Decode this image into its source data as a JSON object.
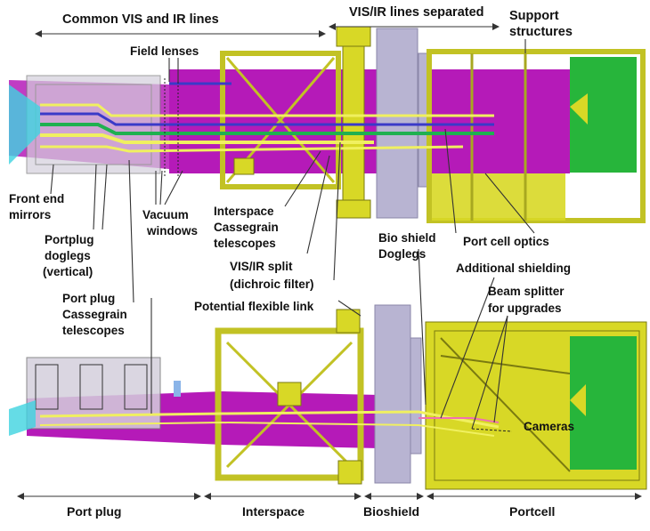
{
  "labels": {
    "common_vis_ir": "Common VIS and IR lines",
    "vis_ir_separated": "VIS/IR lines separated",
    "support_structures_1": "Support",
    "support_structures_2": "structures",
    "field_lenses": "Field lenses",
    "front_end_mirrors_1": "Front end",
    "front_end_mirrors_2": "mirrors",
    "vacuum_windows_1": "Vacuum",
    "vacuum_windows_2": "windows",
    "portplug_doglegs_1": "Portplug",
    "portplug_doglegs_2": "doglegs",
    "portplug_doglegs_3": "(vertical)",
    "interspace_cassegrain_1": "Interspace",
    "interspace_cassegrain_2": "Cassegrain",
    "interspace_cassegrain_3": "telescopes",
    "vis_ir_split_1": "VIS/IR split",
    "vis_ir_split_2": "(dichroic filter)",
    "potential_flexible_link": "Potential flexible link",
    "port_plug_cassegrain_1": "Port plug",
    "port_plug_cassegrain_2": "Cassegrain",
    "port_plug_cassegrain_3": "telescopes",
    "bio_shield_doglegs_1": "Bio shield",
    "bio_shield_doglegs_2": "Doglegs",
    "port_cell_optics": "Port cell optics",
    "additional_shielding": "Additional shielding",
    "beam_splitter_1": "Beam splitter",
    "beam_splitter_2": "for upgrades",
    "cameras": "Cameras"
  },
  "sections": {
    "port_plug": "Port plug",
    "interspace": "Interspace",
    "bioshield": "Bioshield",
    "portcell": "Portcell"
  },
  "colors": {
    "magenta": "#b51ab8",
    "yellow": "#d8d826",
    "yellow_dark": "#7a7a10",
    "green": "#27b53b",
    "lavender": "#b8b4d2",
    "plug_gray": "#d4d0dc",
    "beam_yellow": "#f0f060",
    "beam_green": "#1fb050",
    "beam_blue": "#3a3ac8",
    "arrow": "#333333"
  }
}
